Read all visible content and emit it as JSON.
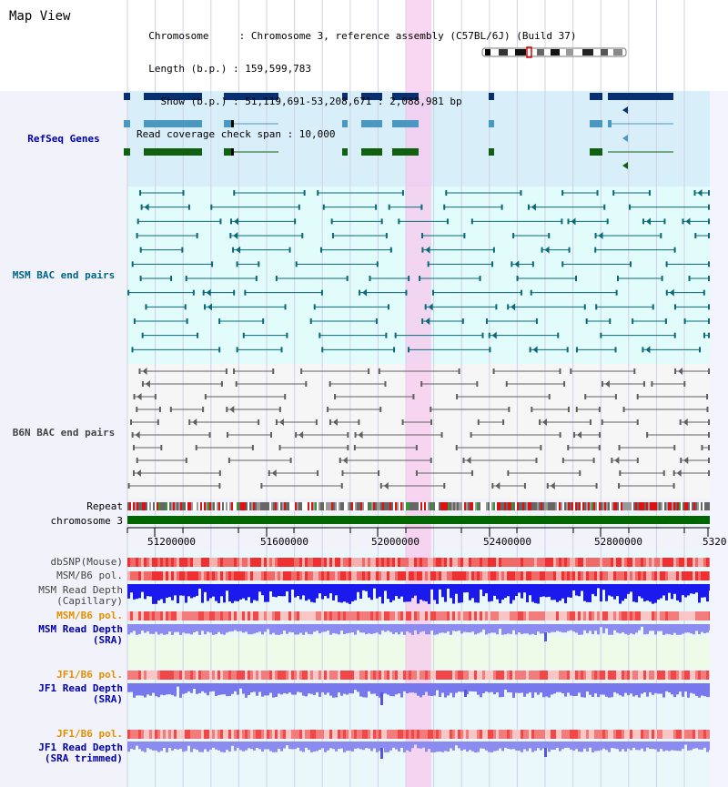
{
  "header": {
    "view_title": "Map View",
    "info_lines": [
      "  Chromosome     : Chromosome 3, reference assembly (C57BL/6J) (Build 37)",
      "  Length (b.p.) : 159,599,783",
      "    Show (b.p.) : 51,119,691-53,208,671 : 2,088,981 bp",
      "Read coverage check span : 10,000"
    ]
  },
  "lanes": {
    "refseq": "RefSeq Genes",
    "msm_bac": "MSM BAC end pairs",
    "b6n_bac": "B6N BAC end pairs"
  },
  "tracks": {
    "repeat": "Repeat",
    "chromosome": "chromosome 3",
    "dbsnp": "dbSNP(Mouse)",
    "msm_b6_pol": "MSM/B6 pol.",
    "msm_depth_cap": "MSM Read Depth\n(Capillary)",
    "msm_b6_pol2": "MSM/B6 pol.",
    "msm_depth_sra": "MSM Read Depth\n(SRA)",
    "jf1_b6_pol": "JF1/B6 pol.",
    "jf1_depth_sra": "JF1 Read Depth\n(SRA)",
    "jf1_b6_pol2": "JF1/B6 pol.",
    "jf1_depth_trim": "JF1 Read Depth\n(SRA trimmed)"
  },
  "axis": {
    "ticks": [
      "51200000",
      "51600000",
      "52000000",
      "52400000",
      "52800000",
      "5320"
    ]
  },
  "colors": {
    "label_blue": "#0000aa",
    "label_teal": "#006688",
    "label_gray": "#444444",
    "label_orange": "#e09000",
    "highlight": "#f7c8ee"
  }
}
